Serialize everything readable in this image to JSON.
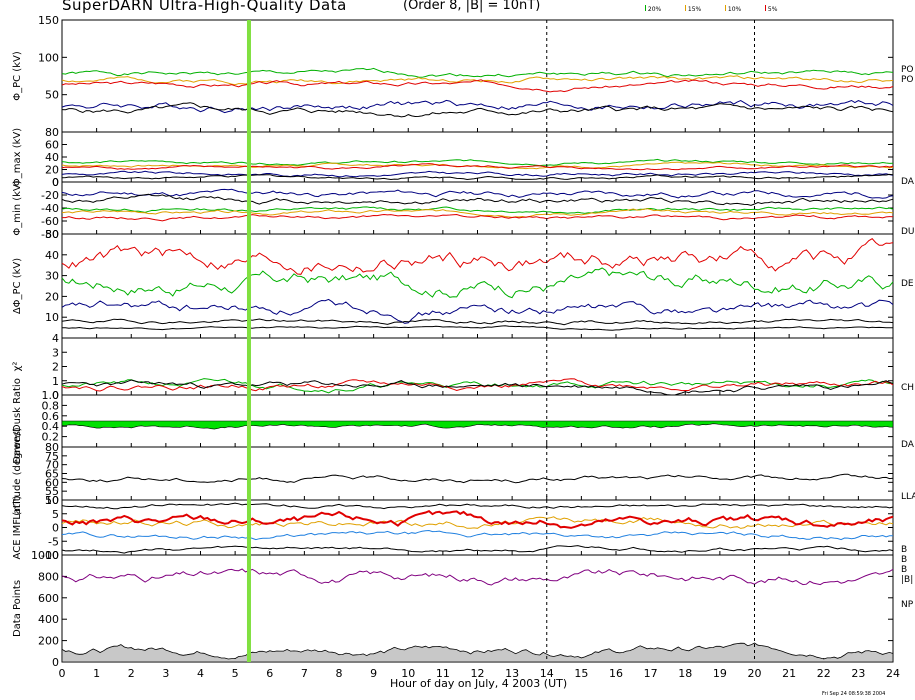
{
  "header": {
    "title": "SuperDARN Ultra-High-Quality Data",
    "params": "(Order 8, |B| = 10nT)",
    "legend": [
      {
        "label": "20%",
        "color": "#00b000"
      },
      {
        "label": "15%",
        "color": "#e0a000"
      },
      {
        "label": "10%",
        "color": "#e0a000"
      },
      {
        "label": "5%",
        "color": "#e00000"
      }
    ]
  },
  "footer": {
    "xlabel": "Hour of day on July, 4 2003 (UT)",
    "timestamp": "Fri Sep 24 08:59:38 2004"
  },
  "chart_data": {
    "type": "line",
    "xlim": [
      0,
      24
    ],
    "x_ticks": [
      "0",
      "1",
      "2",
      "3",
      "4",
      "5",
      "6",
      "7",
      "8",
      "9",
      "10",
      "11",
      "12",
      "13",
      "14",
      "15",
      "16",
      "17",
      "18",
      "19",
      "20",
      "21",
      "22",
      "23",
      "24"
    ],
    "marker_hour": 5.4,
    "dashed_hours": [
      14,
      20
    ],
    "panels": [
      {
        "name": "pcp",
        "ylabel": "Φ_PC (kV)",
        "ylim": [
          0,
          150
        ],
        "yticks": [
          "50",
          "100",
          "150"
        ],
        "right": [
          "PO",
          "PO"
        ],
        "series": [
          {
            "color": "#00b000",
            "base": 78,
            "amp": 7,
            "seed": 1
          },
          {
            "color": "#e0a000",
            "base": 70,
            "amp": 7,
            "seed": 2
          },
          {
            "color": "#e00000",
            "base": 64,
            "amp": 7,
            "seed": 3
          },
          {
            "color": "#000080",
            "base": 36,
            "amp": 12,
            "seed": 4
          },
          {
            "color": "#000000",
            "base": 28,
            "amp": 10,
            "seed": 5
          }
        ]
      },
      {
        "name": "phimax",
        "ylabel": "Φ_max (kV)",
        "ylim": [
          0,
          80
        ],
        "yticks": [
          "0",
          "20",
          "40",
          "60",
          "80"
        ],
        "right": [
          "DA"
        ],
        "series": [
          {
            "color": "#00b000",
            "base": 32,
            "amp": 5,
            "seed": 6
          },
          {
            "color": "#e0a000",
            "base": 27,
            "amp": 5,
            "seed": 7
          },
          {
            "color": "#e00000",
            "base": 23,
            "amp": 5,
            "seed": 8
          },
          {
            "color": "#000080",
            "base": 13,
            "amp": 6,
            "seed": 9
          },
          {
            "color": "#000000",
            "base": 8,
            "amp": 5,
            "seed": 10
          }
        ]
      },
      {
        "name": "phimin",
        "ylabel": "Φ_min (kV)",
        "ylim": [
          -80,
          0
        ],
        "yticks": [
          "-80",
          "-60",
          "-40",
          "-20",
          "0"
        ],
        "right": [
          "DU"
        ],
        "series": [
          {
            "color": "#000080",
            "base": -18,
            "amp": 10,
            "seed": 11
          },
          {
            "color": "#000000",
            "base": -28,
            "amp": 10,
            "seed": 12
          },
          {
            "color": "#00b000",
            "base": -42,
            "amp": 6,
            "seed": 13
          },
          {
            "color": "#e0a000",
            "base": -47,
            "amp": 6,
            "seed": 14
          },
          {
            "color": "#e00000",
            "base": -54,
            "amp": 6,
            "seed": 15
          }
        ]
      },
      {
        "name": "dpcp",
        "ylabel": "ΔΦ_PC (kV)",
        "ylim": [
          0,
          50
        ],
        "yticks": [
          "10",
          "20",
          "30",
          "40",
          "50"
        ],
        "right": [
          "DE"
        ],
        "series": [
          {
            "color": "#e00000",
            "base": 38,
            "amp": 10,
            "seed": 16
          },
          {
            "color": "#00b000",
            "base": 27,
            "amp": 9,
            "seed": 17
          },
          {
            "color": "#000080",
            "base": 14,
            "amp": 6,
            "seed": 18
          },
          {
            "color": "#000000",
            "base": 8,
            "amp": 2,
            "seed": 19
          },
          {
            "color": "#000000",
            "base": 5,
            "amp": 1,
            "seed": 20
          }
        ]
      },
      {
        "name": "chi2",
        "ylabel": "χ²",
        "ylim": [
          0,
          4
        ],
        "yticks": [
          "0",
          "1",
          "2",
          "3",
          "4"
        ],
        "right": [
          "CH"
        ],
        "series": [
          {
            "color": "#00b000",
            "base": 0.75,
            "amp": 0.5,
            "seed": 21
          },
          {
            "color": "#e00000",
            "base": 0.7,
            "amp": 0.5,
            "seed": 22
          },
          {
            "color": "#000000",
            "base": 0.65,
            "amp": 0.5,
            "seed": 23
          }
        ]
      },
      {
        "name": "ratio",
        "ylabel": "Dawn/Dusk Ratio",
        "ylim": [
          0,
          1
        ],
        "yticks": [
          "0.2",
          "0.4",
          "0.6",
          "0.8",
          "1.0"
        ],
        "right": [
          "DA"
        ],
        "series": [
          {
            "color": "#00e000",
            "base": 0.4,
            "amp": 0.07,
            "seed": 24
          }
        ]
      },
      {
        "name": "lat",
        "ylabel": "Latitude (degrees)",
        "ylim": [
          50,
          80
        ],
        "yticks": [
          "50",
          "55",
          "60",
          "65",
          "70",
          "75",
          "80"
        ],
        "right": [
          "LLA"
        ],
        "series": [
          {
            "color": "#000000",
            "base": 62,
            "amp": 3,
            "seed": 25
          }
        ]
      },
      {
        "name": "imf",
        "ylabel": "ACE IMF (nT)",
        "ylim": [
          -10,
          10
        ],
        "yticks": [
          "-10",
          "-5",
          "0",
          "5",
          "10"
        ],
        "right": [
          "B",
          "B",
          "B",
          "|B|"
        ],
        "series": [
          {
            "color": "#000000",
            "base": 8,
            "amp": 1.5,
            "seed": 26
          },
          {
            "color": "#000000",
            "base": -8,
            "amp": 1.5,
            "seed": 27
          },
          {
            "color": "#e0a000",
            "base": 2,
            "amp": 3,
            "seed": 28
          },
          {
            "color": "#2080e0",
            "base": -3,
            "amp": 2,
            "seed": 29
          },
          {
            "color": "#e00000",
            "base": 2,
            "amp": 4,
            "seed": 30
          }
        ]
      },
      {
        "name": "points",
        "ylabel": "Data Points",
        "ylim": [
          0,
          1000
        ],
        "yticks": [
          "0",
          "200",
          "400",
          "600",
          "800",
          "1000"
        ],
        "right": [
          "NP"
        ],
        "series": [
          {
            "color": "#800080",
            "base": 800,
            "amp": 100,
            "seed": 31
          },
          {
            "color": "#808080",
            "base": 120,
            "amp": 80,
            "seed": 32
          }
        ]
      }
    ]
  }
}
